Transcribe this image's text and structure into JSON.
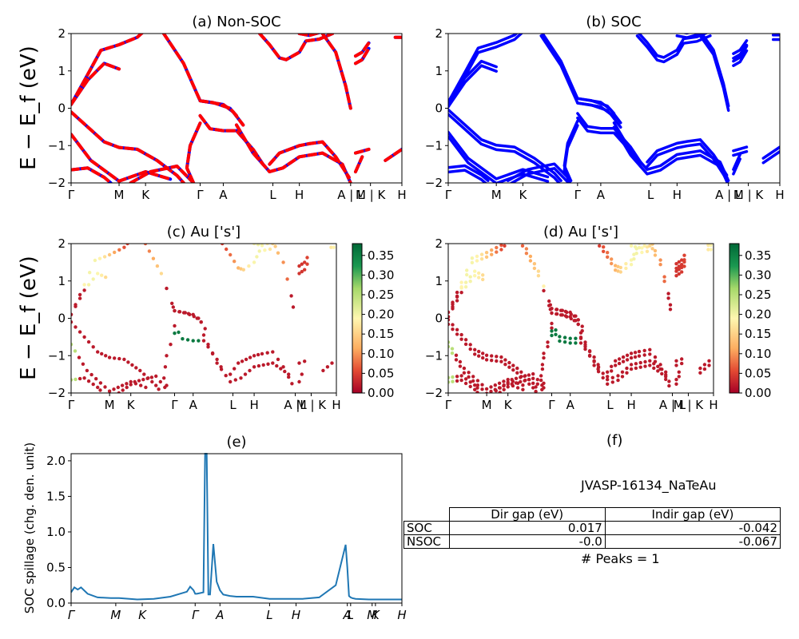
{
  "panels": {
    "a": {
      "title": "(a) Non-SOC"
    },
    "b": {
      "title": "(b) SOC"
    },
    "c": {
      "title": "(c)  Au ['s']"
    },
    "d": {
      "title": "(d) Au ['s']"
    },
    "e": {
      "title": "(e)"
    },
    "f": {
      "title": "(f)"
    }
  },
  "band_ylabel": "E − E_f (eV)",
  "band_yticks": [
    "2",
    "1",
    "0",
    "−1",
    "−2"
  ],
  "kpath_labels": [
    "Γ",
    "M",
    "K",
    "Γ",
    "A",
    "L",
    "H",
    "A | L",
    "M | K",
    "H"
  ],
  "kpath_labels_c": [
    "Γ",
    "M",
    "K",
    "Γ",
    "A",
    "L",
    "H",
    "A |L",
    "M | K",
    "H"
  ],
  "colorbar_ticks": [
    "0.35",
    "0.30",
    "0.25",
    "0.20",
    "0.15",
    "0.10",
    "0.05",
    "0.00"
  ],
  "spillage_ylabel": "SOC spillage (chg. den. unit)",
  "spillage_yticks": [
    "2.0",
    "1.5",
    "1.0",
    "0.5",
    "0.0"
  ],
  "spillage_xticks": [
    "Γ",
    "M",
    "K",
    "Γ",
    "A",
    "L",
    "H",
    "A",
    "L",
    "M",
    "K",
    "H"
  ],
  "material": "JVASP-16134_NaTeAu",
  "gap_table": {
    "col1": "Dir gap (eV)",
    "col2": "Indir gap (eV)",
    "row1": {
      "label": "SOC",
      "dir": "0.017",
      "indir": "-0.042"
    },
    "row2": {
      "label": "NSOC",
      "dir": "-0.0",
      "indir": "-0.067"
    }
  },
  "peaks_text": "# Peaks = 1",
  "chart_data": [
    {
      "type": "line",
      "title": "(a) Non-SOC",
      "ylabel": "E − E_f (eV)",
      "ylim": [
        -2,
        2
      ],
      "x_ticks": [
        "Γ",
        "M",
        "K",
        "Γ",
        "A",
        "L",
        "H",
        "A | L",
        "M | K",
        "H"
      ],
      "x_tick_pos": [
        0,
        0.145,
        0.225,
        0.39,
        0.46,
        0.61,
        0.69,
        0.845,
        0.905,
        1.0
      ],
      "series": [
        {
          "color": "#ff0000",
          "style": "solid",
          "points": [
            [
              0,
              0.1
            ],
            [
              0.05,
              0.9
            ],
            [
              0.09,
              1.55
            ],
            [
              0.145,
              1.7
            ],
            [
              0.2,
              1.9
            ],
            [
              0.225,
              2.1
            ]
          ]
        },
        {
          "color": "#ff0000",
          "style": "solid",
          "points": [
            [
              0,
              0.1
            ],
            [
              0.05,
              0.75
            ],
            [
              0.1,
              1.2
            ],
            [
              0.145,
              1.05
            ]
          ]
        },
        {
          "color": "#ff0000",
          "style": "solid",
          "points": [
            [
              0,
              -0.1
            ],
            [
              0.1,
              -0.9
            ],
            [
              0.145,
              -1.05
            ],
            [
              0.2,
              -1.1
            ],
            [
              0.26,
              -1.4
            ],
            [
              0.32,
              -1.8
            ],
            [
              0.34,
              -2.0
            ]
          ]
        },
        {
          "color": "#ff0000",
          "style": "solid",
          "points": [
            [
              0,
              -0.7
            ],
            [
              0.06,
              -1.4
            ],
            [
              0.145,
              -1.95
            ],
            [
              0.225,
              -1.7
            ],
            [
              0.3,
              -1.9
            ]
          ]
        },
        {
          "color": "#ff0000",
          "style": "solid",
          "points": [
            [
              0,
              -1.65
            ],
            [
              0.05,
              -1.6
            ],
            [
              0.1,
              -1.85
            ],
            [
              0.12,
              -2.0
            ]
          ]
        },
        {
          "color": "#ff0000",
          "style": "solid",
          "points": [
            [
              0.18,
              -2.0
            ],
            [
              0.24,
              -1.7
            ],
            [
              0.32,
              -1.55
            ],
            [
              0.37,
              -2.0
            ]
          ]
        },
        {
          "color": "#ff0000",
          "style": "solid",
          "points": [
            [
              0.28,
              2.0
            ],
            [
              0.34,
              1.2
            ],
            [
              0.38,
              0.4
            ],
            [
              0.39,
              0.2
            ],
            [
              0.46,
              0.1
            ],
            [
              0.49,
              -0.1
            ],
            [
              0.52,
              -0.45
            ]
          ]
        },
        {
          "color": "#ff0000",
          "style": "solid",
          "points": [
            [
              0.39,
              0.2
            ],
            [
              0.43,
              0.15
            ],
            [
              0.48,
              0.0
            ],
            [
              0.5,
              -0.2
            ]
          ]
        },
        {
          "color": "#ff0000",
          "style": "solid",
          "points": [
            [
              0.39,
              -0.2
            ],
            [
              0.42,
              -0.55
            ],
            [
              0.46,
              -0.6
            ],
            [
              0.5,
              -0.6
            ],
            [
              0.55,
              -1.1
            ],
            [
              0.58,
              -1.5
            ]
          ]
        },
        {
          "color": "#ff0000",
          "style": "solid",
          "points": [
            [
              0.39,
              -0.4
            ],
            [
              0.36,
              -1.0
            ],
            [
              0.35,
              -1.6
            ],
            [
              0.37,
              -2.0
            ]
          ]
        },
        {
          "color": "#ff0000",
          "style": "solid",
          "points": [
            [
              0.5,
              -0.45
            ],
            [
              0.55,
              -1.2
            ],
            [
              0.6,
              -1.7
            ],
            [
              0.64,
              -1.6
            ],
            [
              0.69,
              -1.3
            ],
            [
              0.76,
              -1.2
            ],
            [
              0.82,
              -1.5
            ],
            [
              0.845,
              -2.0
            ]
          ]
        },
        {
          "color": "#ff0000",
          "style": "solid",
          "points": [
            [
              0.6,
              -1.5
            ],
            [
              0.63,
              -1.2
            ],
            [
              0.69,
              -1.0
            ],
            [
              0.72,
              -0.95
            ],
            [
              0.76,
              -0.9
            ],
            [
              0.8,
              -1.3
            ],
            [
              0.84,
              -1.85
            ]
          ]
        },
        {
          "color": "#ff0000",
          "style": "solid",
          "points": [
            [
              0.57,
              2.0
            ],
            [
              0.6,
              1.7
            ],
            [
              0.63,
              1.35
            ],
            [
              0.65,
              1.3
            ],
            [
              0.69,
              1.5
            ],
            [
              0.71,
              1.8
            ],
            [
              0.75,
              1.85
            ],
            [
              0.79,
              2.0
            ]
          ]
        },
        {
          "color": "#ff0000",
          "style": "solid",
          "points": [
            [
              0.69,
              2.0
            ],
            [
              0.72,
              1.95
            ],
            [
              0.76,
              2.05
            ]
          ]
        },
        {
          "color": "#ff0000",
          "style": "solid",
          "points": [
            [
              0.76,
              2.0
            ],
            [
              0.8,
              1.5
            ],
            [
              0.83,
              0.6
            ],
            [
              0.845,
              0.0
            ]
          ]
        },
        {
          "color": "#ff0000",
          "style": "solid",
          "points": [
            [
              0.86,
              1.2
            ],
            [
              0.88,
              1.3
            ],
            [
              0.9,
              1.6
            ]
          ]
        },
        {
          "color": "#ff0000",
          "style": "solid",
          "points": [
            [
              0.86,
              1.4
            ],
            [
              0.88,
              1.5
            ],
            [
              0.9,
              1.75
            ]
          ]
        },
        {
          "color": "#ff0000",
          "style": "solid",
          "points": [
            [
              0.86,
              -1.2
            ],
            [
              0.9,
              -1.1
            ]
          ]
        },
        {
          "color": "#ff0000",
          "style": "solid",
          "points": [
            [
              0.86,
              -1.7
            ],
            [
              0.88,
              -1.3
            ]
          ]
        },
        {
          "color": "#ff0000",
          "style": "solid",
          "points": [
            [
              0.95,
              -1.4
            ],
            [
              1.0,
              -1.1
            ]
          ]
        },
        {
          "color": "#ff0000",
          "style": "solid",
          "points": [
            [
              0.98,
              1.9
            ],
            [
              1.0,
              1.9
            ]
          ]
        }
      ]
    },
    {
      "type": "line",
      "title": "(b) SOC",
      "ylabel": "",
      "ylim": [
        -2,
        2
      ],
      "x_ticks": [
        "Γ",
        "M",
        "K",
        "Γ",
        "A",
        "L",
        "H",
        "A | L",
        "M | K",
        "H"
      ],
      "series": [
        {
          "color": "#0000ff",
          "style": "solid",
          "note": "same band structure as (a) with spin-orbit-split pairs"
        }
      ]
    },
    {
      "type": "scatter",
      "title": "(c)  Au ['s']",
      "ylim": [
        -2,
        2
      ],
      "colorbar": {
        "min": 0.0,
        "max": 0.38,
        "cmap": "RdYlGn",
        "ticks": [
          0.0,
          0.05,
          0.1,
          0.15,
          0.2,
          0.25,
          0.3,
          0.35
        ]
      }
    },
    {
      "type": "scatter",
      "title": "(d) Au ['s']",
      "ylim": [
        -2,
        2
      ],
      "colorbar": {
        "min": 0.0,
        "max": 0.38,
        "cmap": "RdYlGn",
        "ticks": [
          0.0,
          0.05,
          0.1,
          0.15,
          0.2,
          0.25,
          0.3,
          0.35
        ]
      }
    },
    {
      "type": "line",
      "title": "(e)",
      "ylabel": "SOC spillage (chg. den. unit)",
      "ylim": [
        0,
        2.1
      ],
      "x_ticks": [
        "Γ",
        "M",
        "K",
        "Γ",
        "A",
        "L",
        "H",
        "A",
        "L",
        "M",
        "K",
        "H"
      ],
      "x": [
        0,
        0.01,
        0.02,
        0.03,
        0.05,
        0.08,
        0.12,
        0.145,
        0.2,
        0.25,
        0.3,
        0.35,
        0.36,
        0.37,
        0.375,
        0.38,
        0.39,
        0.4,
        0.405,
        0.41,
        0.415,
        0.42,
        0.43,
        0.44,
        0.45,
        0.46,
        0.48,
        0.5,
        0.55,
        0.6,
        0.7,
        0.75,
        0.8,
        0.83,
        0.835,
        0.84,
        0.845,
        0.85,
        0.86,
        0.9,
        1.0
      ],
      "y": [
        0.15,
        0.22,
        0.19,
        0.22,
        0.13,
        0.08,
        0.07,
        0.07,
        0.05,
        0.06,
        0.09,
        0.16,
        0.23,
        0.18,
        0.13,
        0.13,
        0.14,
        0.15,
        2.1,
        2.1,
        0.12,
        0.12,
        0.83,
        0.3,
        0.18,
        0.12,
        0.1,
        0.09,
        0.09,
        0.06,
        0.06,
        0.08,
        0.25,
        0.82,
        0.5,
        0.1,
        0.08,
        0.07,
        0.06,
        0.05,
        0.05
      ]
    },
    {
      "type": "table",
      "title": "(f)",
      "columns": [
        "",
        "Dir gap (eV)",
        "Indir gap (eV)"
      ],
      "rows": [
        [
          "SOC",
          "0.017",
          "-0.042"
        ],
        [
          "NSOC",
          "-0.0",
          "-0.067"
        ]
      ]
    }
  ]
}
